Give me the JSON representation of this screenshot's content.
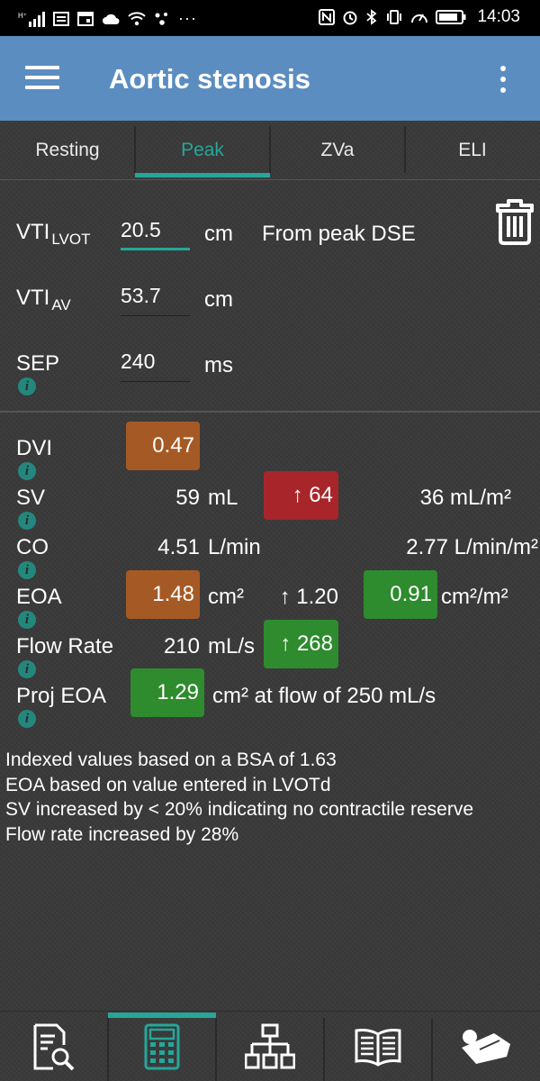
{
  "status_bar": {
    "time": "14:03",
    "more": "···",
    "icons": [
      "signal-icon",
      "message-icon",
      "calendar-icon",
      "cloud-icon",
      "wifi-icon",
      "dots-cluster-icon",
      "nfc-icon",
      "alarm-icon",
      "bluetooth-icon",
      "vibrate-icon",
      "speed-icon",
      "battery-icon"
    ]
  },
  "app_bar": {
    "title": "Aortic stenosis",
    "menu_icon": "hamburger-menu-icon",
    "overflow_icon": "more-vert-icon"
  },
  "tabs": [
    {
      "label": "Resting",
      "active": false
    },
    {
      "label": "Peak",
      "active": true
    },
    {
      "label": "ZVa",
      "active": false
    },
    {
      "label": "ELI",
      "active": false
    }
  ],
  "inputs": {
    "vti_lvot": {
      "label": "VTI",
      "sub": "LVOT",
      "value": "20.5",
      "unit": "cm",
      "note": "From peak DSE"
    },
    "vti_av": {
      "label": "VTI",
      "sub": "AV",
      "value": "53.7",
      "unit": "cm"
    },
    "sep": {
      "label": "SEP",
      "value": "240",
      "unit": "ms"
    },
    "delete_icon": "trash-icon"
  },
  "results": {
    "dvi": {
      "label": "DVI",
      "value": "0.47"
    },
    "sv": {
      "label": "SV",
      "value": "59",
      "unit": "mL",
      "peak": "↑ 64",
      "indexed": "36 mL/m²"
    },
    "co": {
      "label": "CO",
      "value": "4.51",
      "unit": "L/min",
      "indexed": "2.77 L/min/m²"
    },
    "eoa": {
      "label": "EOA",
      "value": "1.48",
      "unit": "cm²",
      "peak": "↑ 1.20",
      "indexed": "0.91",
      "indexed_unit": "cm²/m²"
    },
    "flow_rate": {
      "label": "Flow Rate",
      "value": "210",
      "unit": "mL/s",
      "peak": "↑ 268"
    },
    "proj_eoa": {
      "label": "Proj EOA",
      "value": "1.29",
      "unit": "cm² at flow of 250 mL/s"
    }
  },
  "colors": {
    "accent": "#26a69a",
    "app_bar": "#5b8dc0",
    "warning": "#a55a25",
    "bad": "#a8262a",
    "good": "#2e8b2e"
  },
  "notes": [
    "Indexed values based on a BSA of 1.63",
    "EOA based on value entered in LVOTd",
    "SV increased by < 20% indicating no contractile reserve",
    "Flow rate increased by 28%"
  ],
  "bottom_nav": [
    {
      "icon": "report-search-icon",
      "active": false
    },
    {
      "icon": "calculator-icon",
      "active": true
    },
    {
      "icon": "hierarchy-icon",
      "active": false
    },
    {
      "icon": "book-icon",
      "active": false
    },
    {
      "icon": "patient-icon",
      "active": false
    }
  ]
}
